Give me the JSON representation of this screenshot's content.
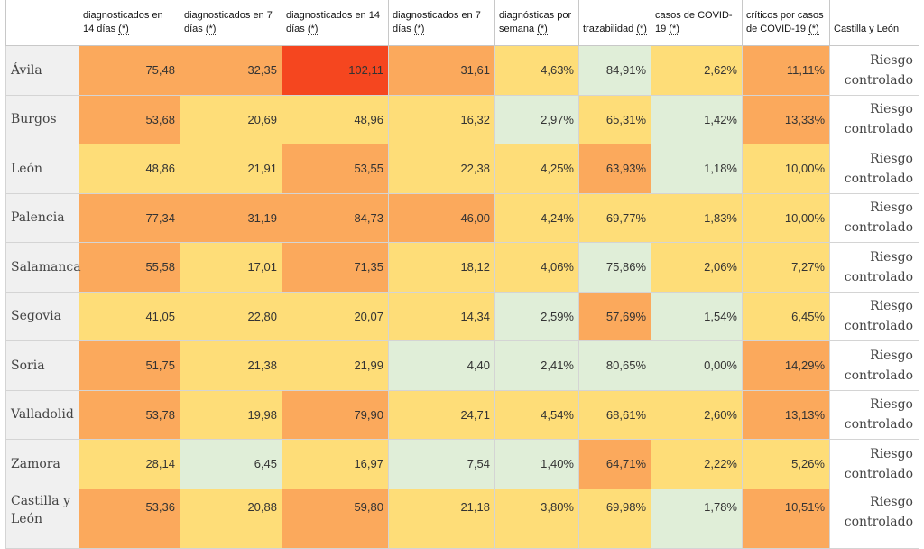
{
  "colors": {
    "red": "#f5461f",
    "orange": "#fba95c",
    "yellow": "#fedd78",
    "green": "#e0eed8"
  },
  "columns": [
    {
      "label": "diagnosticados en 14 días",
      "note": "(*)"
    },
    {
      "label": "diagnosticados en 7 días",
      "note": "(*)"
    },
    {
      "label": "diagnosticados en 14 días",
      "note": "(*)"
    },
    {
      "label": "diagnosticados en 7 días",
      "note": "(*)"
    },
    {
      "label": "diagnósticas por semana",
      "note": "(*)"
    },
    {
      "label": "trazabilidad",
      "note": "(*)"
    },
    {
      "label": "casos de COVID-19",
      "note": "(*)"
    },
    {
      "label": "críticos por casos de COVID-19",
      "note": "(*)"
    },
    {
      "label": "Castilla y León",
      "note": ""
    }
  ],
  "rows": [
    {
      "region": "Ávila",
      "values": [
        "75,48",
        "32,35",
        "102,11",
        "31,61",
        "4,63%",
        "84,91%",
        "2,62%",
        "11,11%"
      ],
      "levels": [
        "orange",
        "orange",
        "red",
        "orange",
        "yellow",
        "green",
        "yellow",
        "orange"
      ],
      "status": "Riesgo controlado"
    },
    {
      "region": "Burgos",
      "values": [
        "53,68",
        "20,69",
        "48,96",
        "16,32",
        "2,97%",
        "65,31%",
        "1,42%",
        "13,33%"
      ],
      "levels": [
        "orange",
        "yellow",
        "yellow",
        "yellow",
        "green",
        "yellow",
        "green",
        "orange"
      ],
      "status": "Riesgo controlado"
    },
    {
      "region": "León",
      "values": [
        "48,86",
        "21,91",
        "53,55",
        "22,38",
        "4,25%",
        "63,93%",
        "1,18%",
        "10,00%"
      ],
      "levels": [
        "yellow",
        "yellow",
        "orange",
        "yellow",
        "yellow",
        "orange",
        "green",
        "yellow"
      ],
      "status": "Riesgo controlado"
    },
    {
      "region": "Palencia",
      "values": [
        "77,34",
        "31,19",
        "84,73",
        "46,00",
        "4,24%",
        "69,77%",
        "1,83%",
        "10,00%"
      ],
      "levels": [
        "orange",
        "orange",
        "orange",
        "orange",
        "yellow",
        "yellow",
        "yellow",
        "yellow"
      ],
      "status": "Riesgo controlado"
    },
    {
      "region": "Salamanca",
      "values": [
        "55,58",
        "17,01",
        "71,35",
        "18,12",
        "4,06%",
        "75,86%",
        "2,06%",
        "7,27%"
      ],
      "levels": [
        "orange",
        "yellow",
        "orange",
        "yellow",
        "yellow",
        "green",
        "yellow",
        "yellow"
      ],
      "status": "Riesgo controlado"
    },
    {
      "region": "Segovia",
      "values": [
        "41,05",
        "22,80",
        "20,07",
        "14,34",
        "2,59%",
        "57,69%",
        "1,54%",
        "6,45%"
      ],
      "levels": [
        "yellow",
        "yellow",
        "yellow",
        "yellow",
        "green",
        "orange",
        "green",
        "yellow"
      ],
      "status": "Riesgo controlado"
    },
    {
      "region": "Soria",
      "values": [
        "51,75",
        "21,38",
        "21,99",
        "4,40",
        "2,41%",
        "80,65%",
        "0,00%",
        "14,29%"
      ],
      "levels": [
        "orange",
        "yellow",
        "yellow",
        "green",
        "green",
        "green",
        "green",
        "orange"
      ],
      "status": "Riesgo controlado"
    },
    {
      "region": "Valladolid",
      "values": [
        "53,78",
        "19,98",
        "79,90",
        "24,71",
        "4,54%",
        "68,61%",
        "2,60%",
        "13,13%"
      ],
      "levels": [
        "orange",
        "yellow",
        "orange",
        "yellow",
        "yellow",
        "yellow",
        "yellow",
        "orange"
      ],
      "status": "Riesgo controlado"
    },
    {
      "region": "Zamora",
      "values": [
        "28,14",
        "6,45",
        "16,97",
        "7,54",
        "1,40%",
        "64,71%",
        "2,22%",
        "5,26%"
      ],
      "levels": [
        "yellow",
        "green",
        "yellow",
        "green",
        "green",
        "orange",
        "yellow",
        "yellow"
      ],
      "status": "Riesgo controlado"
    },
    {
      "region": "Castilla y León",
      "values": [
        "53,36",
        "20,88",
        "59,80",
        "21,18",
        "3,80%",
        "69,98%",
        "1,78%",
        "10,51%"
      ],
      "levels": [
        "orange",
        "yellow",
        "orange",
        "yellow",
        "yellow",
        "yellow",
        "green",
        "orange"
      ],
      "status": "Riesgo controlado"
    }
  ]
}
